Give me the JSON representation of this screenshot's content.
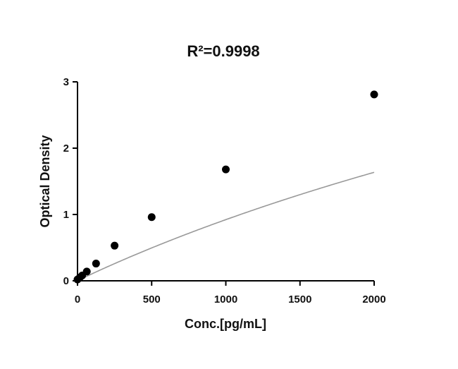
{
  "chart_data": {
    "type": "scatter",
    "title": "R²=0.9998",
    "xlabel": "Conc.[pg/mL]",
    "ylabel": "Optical Density",
    "xlim": [
      0,
      2000
    ],
    "ylim": [
      0,
      3
    ],
    "xticks": [
      0,
      500,
      1000,
      1500,
      2000
    ],
    "yticks": [
      0,
      1,
      2,
      3
    ],
    "grid": false,
    "legend": "none",
    "series": [
      {
        "x": [
          0,
          15.6,
          31.25,
          62.5,
          125,
          250,
          500,
          1000,
          2000
        ],
        "y": [
          0.02,
          0.05,
          0.08,
          0.14,
          0.26,
          0.53,
          0.96,
          1.68,
          2.81
        ]
      }
    ],
    "fit_curve": {
      "type": "4PL",
      "a": 0.0,
      "b": 0.98,
      "c": 8000,
      "d": 8.0
    },
    "colors": {
      "points": "#000000",
      "curve": "#999999",
      "axis": "#000000"
    }
  }
}
